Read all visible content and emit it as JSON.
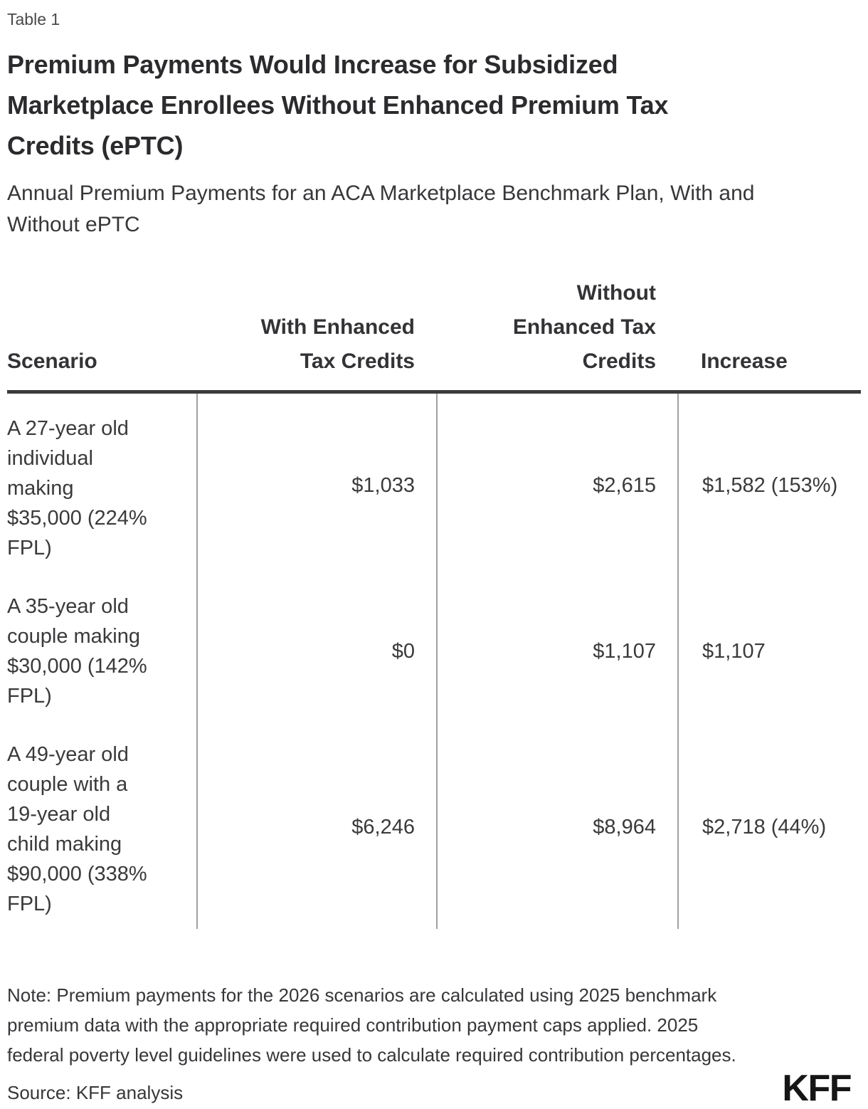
{
  "header": {
    "table_label": "Table 1",
    "title_display": "Premium Payments Would Increase for Subsidized\nMarketplace Enrollees Without Enhanced Premium Tax\nCredits (ePTC)",
    "subtitle_display": "Annual Premium Payments for an ACA Marketplace Benchmark Plan, With and\nWithout ePTC"
  },
  "table": {
    "col_headers": {
      "scenario": "Scenario",
      "with_eptc": "With Enhanced\nTax Credits",
      "without_eptc": "Without\nEnhanced Tax\nCredits",
      "increase": "Increase"
    },
    "rows": [
      {
        "scenario_display": "A 27-year old\nindividual\nmaking\n$35,000 (224%\nFPL)",
        "with_eptc": "$1,033",
        "without_eptc": "$2,615",
        "increase": "$1,582 (153%)"
      },
      {
        "scenario_display": "A 35-year old\ncouple making\n$30,000 (142%\nFPL)",
        "with_eptc": "$0",
        "without_eptc": "$1,107",
        "increase": "$1,107"
      },
      {
        "scenario_display": "A 49-year old\ncouple with a\n19-year old\nchild making\n$90,000 (338%\nFPL)",
        "with_eptc": "$6,246",
        "without_eptc": "$8,964",
        "increase": "$2,718 (44%)"
      }
    ]
  },
  "footer": {
    "note_display": "Note: Premium payments for the 2026 scenarios are calculated using 2025 benchmark\npremium data with the appropriate required contribution payment caps applied. 2025\nfederal poverty level guidelines were used to calculate required contribution percentages.",
    "source": "Source: KFF analysis",
    "logo_text": "KFF"
  },
  "colors": {
    "title_text": "#2b2b2e",
    "body_text": "#3a3a3c",
    "header_rule": "#3b3b3b",
    "column_divider": "#a0a0a0",
    "logo": "#161616",
    "background": "#ffffff"
  },
  "chart_data": {
    "type": "table",
    "title": "Premium Payments Would Increase for Subsidized Marketplace Enrollees Without Enhanced Premium Tax Credits (ePTC)",
    "subtitle": "Annual Premium Payments for an ACA Marketplace Benchmark Plan, With and Without ePTC",
    "table_label": "Table 1",
    "columns": [
      "Scenario",
      "With Enhanced Tax Credits",
      "Without Enhanced Tax Credits",
      "Increase"
    ],
    "rows": [
      [
        "A 27-year old individual making $35,000 (224% FPL)",
        "$1,033",
        "$2,615",
        "$1,582 (153%)"
      ],
      [
        "A 35-year old couple making $30,000 (142% FPL)",
        "$0",
        "$1,107",
        "$1,107"
      ],
      [
        "A 49-year old couple with a 19-year old child making $90,000 (338% FPL)",
        "$6,246",
        "$8,964",
        "$2,718 (44%)"
      ]
    ],
    "values_usd": {
      "with_enhanced_tax_credits": [
        1033,
        0,
        6246
      ],
      "without_enhanced_tax_credits": [
        2615,
        1107,
        8964
      ],
      "increase_usd": [
        1582,
        1107,
        2718
      ],
      "increase_percent": [
        153,
        null,
        44
      ]
    },
    "note": "Note: Premium payments for the 2026 scenarios are calculated using 2025 benchmark premium data with the appropriate required contribution payment caps applied. 2025 federal poverty level guidelines were used to calculate required contribution percentages.",
    "source": "Source: KFF analysis"
  }
}
